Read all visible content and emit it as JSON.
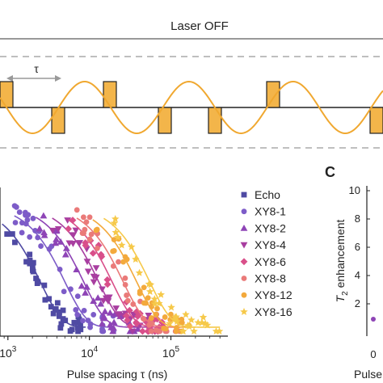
{
  "top_panel": {
    "title": "Laser OFF",
    "tau_label": "τ"
  },
  "panel_c": {
    "label": "C",
    "ylabel": "T2 enhancement",
    "ylabel_main": "T",
    "ylabel_sub": "2",
    "ylabel_rest": " enhancement",
    "yticks": [
      "10",
      "8",
      "6",
      "4",
      "2"
    ],
    "xlabel": "Pulse n",
    "xtick": "0"
  },
  "chart_data": {
    "type": "scatter",
    "xlabel": "Pulse spacing τ (ns)",
    "xscale": "log",
    "xlim": [
      800,
      500000
    ],
    "ylim": [
      0,
      1.05
    ],
    "xtick_labels": [
      {
        "x": 1000,
        "base": "10",
        "exp": "3"
      },
      {
        "x": 10000,
        "base": "10",
        "exp": "4"
      },
      {
        "x": 100000,
        "base": "10",
        "exp": "5"
      }
    ],
    "series": [
      {
        "name": "Echo",
        "marker": "square",
        "color": "#4f4aa3",
        "tau0": 2500,
        "n": 40,
        "xmin": 850,
        "xmax": 9000
      },
      {
        "name": "XY8-1",
        "marker": "circle",
        "color": "#7d5cc8",
        "tau0": 5000,
        "n": 40,
        "xmin": 1200,
        "xmax": 20000
      },
      {
        "name": "XY8-2",
        "marker": "triangle-up",
        "color": "#8e44b6",
        "tau0": 8500,
        "n": 35,
        "xmin": 2200,
        "xmax": 40000
      },
      {
        "name": "XY8-4",
        "marker": "triangle-down",
        "color": "#a83ea0",
        "tau0": 13000,
        "n": 35,
        "xmin": 3500,
        "xmax": 60000
      },
      {
        "name": "XY8-6",
        "marker": "diamond",
        "color": "#d94f8a",
        "tau0": 19000,
        "n": 35,
        "xmin": 5500,
        "xmax": 90000
      },
      {
        "name": "XY8-8",
        "marker": "circle",
        "color": "#ea7a79",
        "tau0": 26000,
        "n": 35,
        "xmin": 7000,
        "xmax": 130000
      },
      {
        "name": "XY8-12",
        "marker": "circle",
        "color": "#f3a93c",
        "tau0": 38000,
        "n": 35,
        "xmin": 11000,
        "xmax": 200000
      },
      {
        "name": "XY8-16",
        "marker": "star",
        "color": "#f6c94a",
        "tau0": 55000,
        "n": 35,
        "xmin": 15000,
        "xmax": 400000
      }
    ]
  }
}
